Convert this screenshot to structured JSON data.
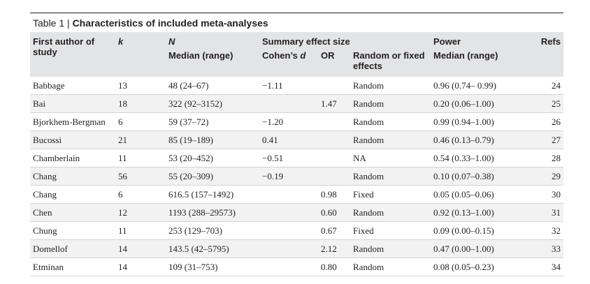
{
  "table": {
    "caption_label": "Table 1 | ",
    "caption_title": "Characteristics of included meta-analyses",
    "headers": {
      "first_author": "First author of study",
      "k": "k",
      "n": "N",
      "n_median": "Median (range)",
      "summary": "Summary effect size",
      "cohens_d_prefix": "Cohen’s ",
      "cohens_d_italic": "d",
      "or": "OR",
      "random_fixed": "Random or fixed effects",
      "power": "Power",
      "power_median": "Median (range)",
      "refs": "Refs"
    },
    "rows": [
      {
        "author": "Babbage",
        "k": "13",
        "n": "48 (24–67)",
        "d": "−1.11",
        "or": "",
        "effects": "Random",
        "power": "0.96 (0.74– 0.99)",
        "ref": "24"
      },
      {
        "author": "Bai",
        "k": "18",
        "n": "322 (92–3152)",
        "d": "",
        "or": "1.47",
        "effects": "Random",
        "power": "0.20 (0.06–1.00)",
        "ref": "25"
      },
      {
        "author": "Bjorkhem-Bergman",
        "k": "6",
        "n": "59 (37–72)",
        "d": "−1.20",
        "or": "",
        "effects": "Random",
        "power": "0.99 (0.94–1.00)",
        "ref": "26"
      },
      {
        "author": "Bucossi",
        "k": "21",
        "n": "85 (19–189)",
        "d": "0.41",
        "or": "",
        "effects": "Random",
        "power": "0.46 (0.13–0.79)",
        "ref": "27"
      },
      {
        "author": "Chamberlain",
        "k": "11",
        "n": "53 (20–452)",
        "d": "−0.51",
        "or": "",
        "effects": "NA",
        "power": "0.54 (0.33–1.00)",
        "ref": "28"
      },
      {
        "author": "Chang",
        "k": "56",
        "n": "55 (20–309)",
        "d": "−0.19",
        "or": "",
        "effects": "Random",
        "power": "0.10 (0.07–0.38)",
        "ref": "29"
      },
      {
        "author": "Chang",
        "k": "6",
        "n": "616.5 (157–1492)",
        "d": "",
        "or": "0.98",
        "effects": "Fixed",
        "power": "0.05 (0.05–0.06)",
        "ref": "30"
      },
      {
        "author": "Chen",
        "k": "12",
        "n": "1193 (288–29573)",
        "d": "",
        "or": "0.60",
        "effects": "Random",
        "power": "0.92 (0.13–1.00)",
        "ref": "31"
      },
      {
        "author": "Chung",
        "k": "11",
        "n": "253 (129–703)",
        "d": "",
        "or": "0.67",
        "effects": "Fixed",
        "power": "0.09 (0.00–0.15)",
        "ref": "32"
      },
      {
        "author": "Domellof",
        "k": "14",
        "n": "143.5 (42–5795)",
        "d": "",
        "or": "2.12",
        "effects": "Random",
        "power": "0.47 (0.00–1.00)",
        "ref": "33"
      },
      {
        "author": "Etminan",
        "k": "14",
        "n": "109 (31–753)",
        "d": "",
        "or": "0.80",
        "effects": "Random",
        "power": "0.08 (0.05–0.23)",
        "ref": "34"
      }
    ]
  }
}
